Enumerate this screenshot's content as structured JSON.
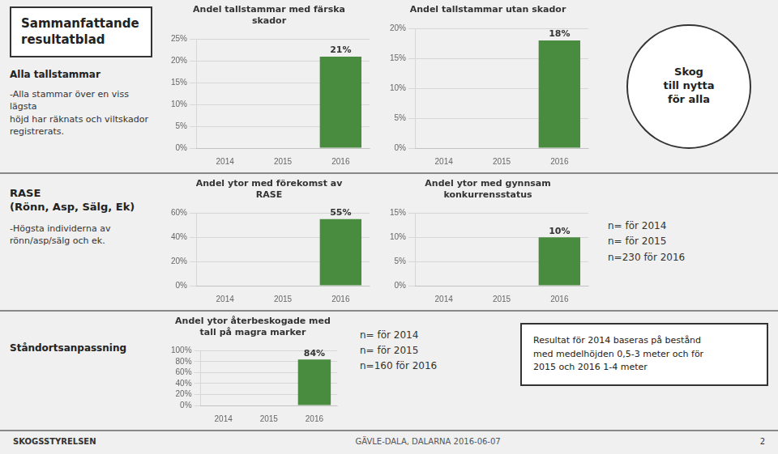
{
  "chart_data": [
    {
      "type": "bar",
      "title": "Andel tallstammar med färska\nskador",
      "categories": [
        "2014",
        "2015",
        "2016"
      ],
      "values": [
        0,
        0,
        0.21
      ],
      "value_labels": [
        null,
        null,
        "21%"
      ],
      "data_labels": true,
      "color": "#4a8c3f",
      "ylim": [
        0,
        0.25
      ],
      "yticks": [
        {
          "value": 0,
          "label": "0%"
        },
        {
          "value": 0.05,
          "label": "5%"
        },
        {
          "value": 0.1,
          "label": "10%"
        },
        {
          "value": 0.15,
          "label": "15%"
        },
        {
          "value": 0.2,
          "label": "20%"
        },
        {
          "value": 0.25,
          "label": "25%"
        }
      ],
      "grid": true,
      "annotations": [
        "Sammanfattande\nresultatblad",
        "Alla tallstammar",
        "-Alla stammar över en viss lägsta\nhöjd har räknats och viltskador\nregistrerats."
      ]
    },
    {
      "type": "bar",
      "title": "Andel tallstammar utan skador",
      "categories": [
        "2014",
        "2015",
        "2016"
      ],
      "values": [
        0,
        0,
        0.18
      ],
      "value_labels": [
        null,
        null,
        "18%"
      ],
      "data_labels": true,
      "color": "#4a8c3f",
      "ylim": [
        0,
        0.2
      ],
      "yticks": [
        {
          "value": 0,
          "label": "0%"
        },
        {
          "value": 0.05,
          "label": "5%"
        },
        {
          "value": 0.1,
          "label": "10%"
        },
        {
          "value": 0.15,
          "label": "15%"
        },
        {
          "value": 0.2,
          "label": "20%"
        }
      ],
      "grid": true,
      "annotations": [
        "Skog\ntill nytta\nför alla"
      ]
    },
    {
      "type": "bar",
      "title": "Andel ytor med förekomst av\nRASE",
      "categories": [
        "2014",
        "2015",
        "2016"
      ],
      "values": [
        0,
        0,
        0.55
      ],
      "value_labels": [
        null,
        null,
        "55%"
      ],
      "data_labels": true,
      "color": "#4a8c3f",
      "ylim": [
        0,
        0.6
      ],
      "yticks": [
        {
          "value": 0,
          "label": "0%"
        },
        {
          "value": 0.2,
          "label": "20%"
        },
        {
          "value": 0.4,
          "label": "40%"
        },
        {
          "value": 0.6,
          "label": "60%"
        }
      ],
      "grid": true,
      "annotations": [
        "RASE\n(Rönn, Asp, Sälg, Ek)",
        "-Högsta individerna av\nrönn/asp/sälg och ek."
      ]
    },
    {
      "type": "bar",
      "title": "Andel ytor med gynnsam\nkonkurrensstatus",
      "categories": [
        "2014",
        "2015",
        "2016"
      ],
      "values": [
        0,
        0,
        0.1
      ],
      "value_labels": [
        null,
        null,
        "10%"
      ],
      "data_labels": true,
      "color": "#4a8c3f",
      "ylim": [
        0,
        0.15
      ],
      "yticks": [
        {
          "value": 0,
          "label": "0%"
        },
        {
          "value": 0.05,
          "label": "5%"
        },
        {
          "value": 0.1,
          "label": "10%"
        },
        {
          "value": 0.15,
          "label": "15%"
        }
      ],
      "grid": true,
      "annotations": [
        "n= för 2014\nn= för 2015\nn=230 för 2016"
      ]
    },
    {
      "type": "bar",
      "title": "Andel ytor återbeskogade med\ntall på magra marker",
      "categories": [
        "2014",
        "2015",
        "2016"
      ],
      "values": [
        0,
        0,
        0.84
      ],
      "value_labels": [
        null,
        null,
        "84%"
      ],
      "data_labels": true,
      "color": "#4a8c3f",
      "ylim": [
        0,
        1.0
      ],
      "yticks": [
        {
          "value": 0,
          "label": "0%"
        },
        {
          "value": 0.2,
          "label": "20%"
        },
        {
          "value": 0.4,
          "label": "40%"
        },
        {
          "value": 0.6,
          "label": "60%"
        },
        {
          "value": 0.8,
          "label": "80%"
        },
        {
          "value": 1.0,
          "label": "100%"
        }
      ],
      "grid": true,
      "annotations": [
        "Ståndortsanpassning",
        "n= för 2014\nn= för 2015\nn=160 för 2016",
        "Resultat för 2014 baseras på bestånd\nmed medelhöjden 0,5-3 meter och för\n2015 och 2016 1-4 meter",
        "SKOGSSTYRELSEN",
        "GÄVLE-DALA, DALARNA  2016-06-07",
        "2"
      ]
    }
  ]
}
